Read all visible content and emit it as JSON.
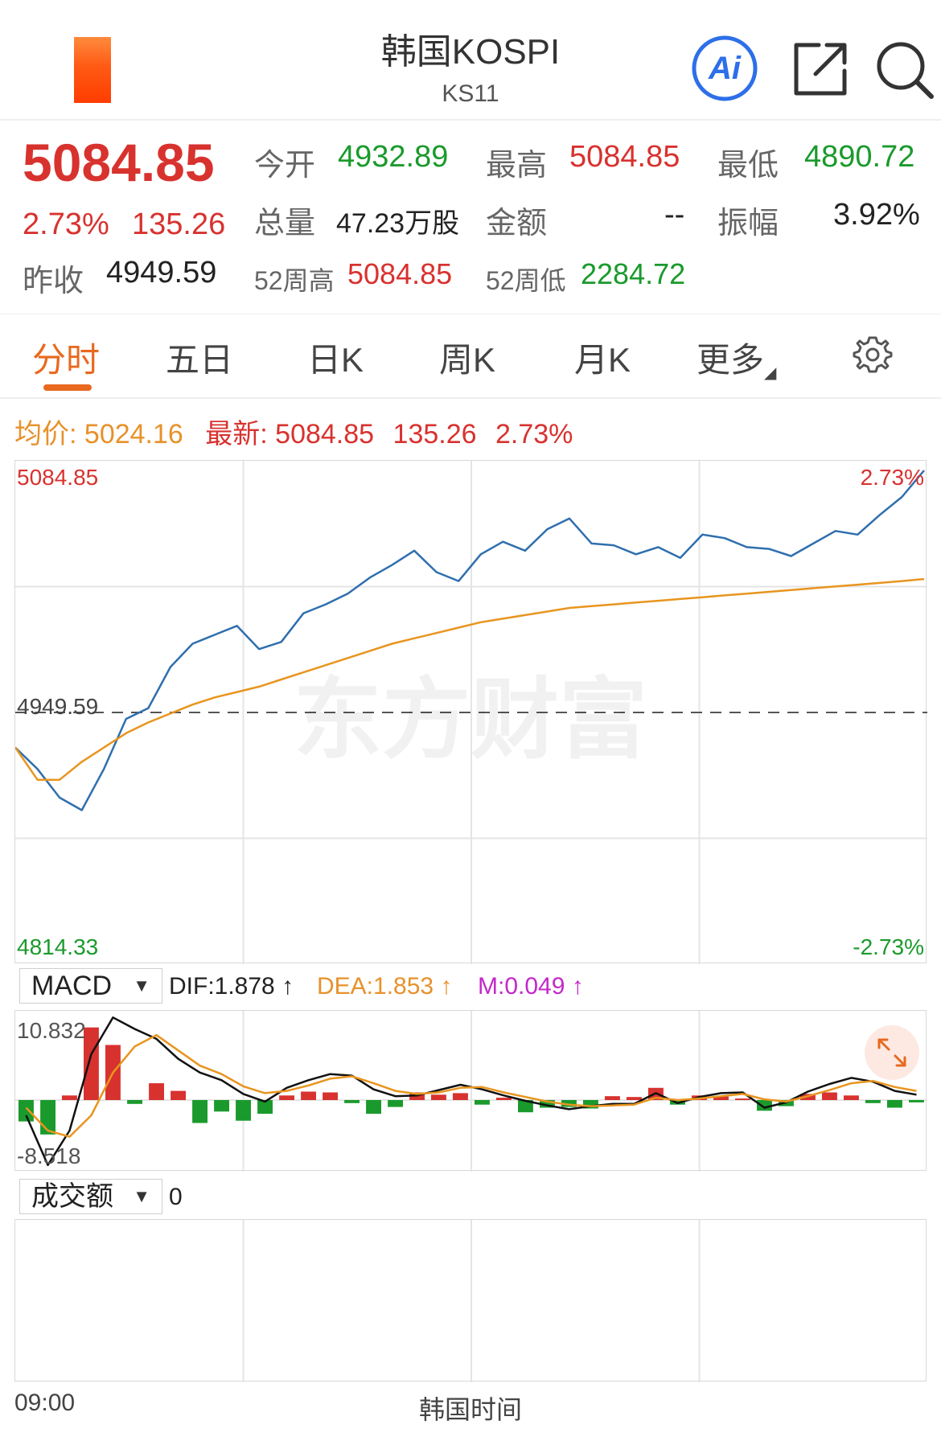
{
  "header": {
    "title": "韩国KOSPI",
    "code": "KS11",
    "ai_label": "Ai"
  },
  "quote": {
    "price": "5084.85",
    "change_pct": "2.73%",
    "change": "135.26",
    "open_label": "今开",
    "open": "4932.89",
    "high_label": "最高",
    "high": "5084.85",
    "low_label": "最低",
    "low": "4890.72",
    "volume_label": "总量",
    "volume": "47.23万股",
    "amount_label": "金额",
    "amount": "--",
    "amplitude_label": "振幅",
    "amplitude": "3.92%",
    "prev_close_label": "昨收",
    "prev_close": "4949.59",
    "w52_high_label": "52周高",
    "w52_high": "5084.85",
    "w52_low_label": "52周低",
    "w52_low": "2284.72"
  },
  "tabs": {
    "items": [
      "分时",
      "五日",
      "日K",
      "周K",
      "月K",
      "更多"
    ],
    "active": "分时"
  },
  "legend": {
    "avg_label": "均价:",
    "avg_value": "5024.16",
    "latest_label": "最新:",
    "latest_value": "5084.85",
    "latest_change": "135.26",
    "latest_pct": "2.73%"
  },
  "price_axis": {
    "top": "5084.85",
    "mid": "4949.59",
    "bottom": "4814.33",
    "top_pct": "2.73%",
    "bottom_pct": "-2.73%"
  },
  "watermark": "东方财富",
  "macd": {
    "selector": "MACD",
    "dif": "DIF:1.878 ↑",
    "dea": "DEA:1.853 ↑",
    "m": "M:0.049 ↑",
    "top_label": "10.832",
    "bottom_label": "-8.518"
  },
  "amount_panel": {
    "selector": "成交额",
    "value": "0"
  },
  "time_axis": {
    "start": "09:00",
    "center": "韩国时间"
  },
  "colors": {
    "up": "#d8322f",
    "down": "#1a9a2c",
    "price_line": "#2f6fae",
    "avg_line": "#e8951f",
    "accent": "#e8691f",
    "ai_blue": "#2d6fe8"
  },
  "chart_data": [
    {
      "type": "line",
      "series": [
        {
          "values": [
            4930,
            4918,
            4902,
            4895,
            4918,
            4946,
            4952,
            4975,
            4988,
            4993,
            4998,
            4985,
            4989,
            5005,
            5010,
            5016,
            5025,
            5032,
            5040,
            5028,
            5023,
            5038,
            5045,
            5040,
            5052,
            5058,
            5044,
            5043,
            5038,
            5042,
            5036,
            5049,
            5047,
            5042,
            5041,
            5037,
            5044,
            5051,
            5049,
            5060,
            5070,
            5084.85
          ]
        },
        {
          "values": [
            4930,
            4912,
            4912,
            4922,
            4930,
            4938,
            4944,
            4949,
            4954,
            4958,
            4961,
            4964,
            4968,
            4972,
            4976,
            4980,
            4984,
            4988,
            4991,
            4994,
            4997,
            5000,
            5002,
            5004,
            5006,
            5008,
            5009,
            5010,
            5011,
            5012,
            5013,
            5014,
            5015,
            5016,
            5017,
            5018,
            5019,
            5020,
            5021,
            5022,
            5023,
            5024.16
          ]
        }
      ],
      "reference": 4949.59,
      "ylim": [
        4814.33,
        5084.85
      ]
    },
    {
      "type": "bar",
      "series": [
        {
          "values": [
            -2.8,
            -4.5,
            0.6,
            9.5,
            7.2,
            -0.5,
            2.2,
            1.2,
            -3.0,
            -1.5,
            -2.7,
            -1.8,
            0.6,
            1.1,
            1.0,
            -0.4,
            -1.8,
            -0.9,
            1.0,
            0.7,
            0.9,
            -0.6,
            0.3,
            -1.6,
            -1.0,
            -0.9,
            -1.1,
            0.5,
            0.4,
            1.6,
            -0.6,
            0.6,
            0.5,
            0.2,
            -1.4,
            -0.8,
            0.8,
            1.0,
            0.6,
            -0.4,
            -1.0,
            -0.3
          ]
        },
        {
          "values": [
            -2.0,
            -8.5,
            -4.0,
            6.0,
            10.8,
            9.3,
            8.0,
            5.4,
            3.6,
            2.6,
            0.8,
            -0.2,
            1.6,
            2.6,
            3.4,
            3.2,
            1.4,
            0.5,
            0.6,
            1.3,
            2.0,
            1.4,
            0.6,
            -0.1,
            -0.7,
            -1.2,
            -0.8,
            -0.5,
            -0.5,
            0.9,
            -0.4,
            0.4,
            0.9,
            1.0,
            -1.0,
            -0.3,
            1.1,
            2.1,
            2.9,
            2.4,
            1.2,
            0.7
          ]
        },
        {
          "values": [
            -1.0,
            -4.0,
            -4.8,
            -2.0,
            3.6,
            7.0,
            8.5,
            6.5,
            4.5,
            3.4,
            1.8,
            0.9,
            1.2,
            1.9,
            2.8,
            3.1,
            2.2,
            1.2,
            0.8,
            1.0,
            1.6,
            1.7,
            1.0,
            0.4,
            -0.2,
            -0.6,
            -0.8,
            -0.7,
            -0.6,
            0.3,
            0.0,
            0.2,
            0.5,
            0.8,
            0.1,
            -0.2,
            0.5,
            1.3,
            2.2,
            2.5,
            1.7,
            1.2
          ]
        }
      ],
      "ylim": [
        -8.518,
        10.832
      ]
    }
  ]
}
